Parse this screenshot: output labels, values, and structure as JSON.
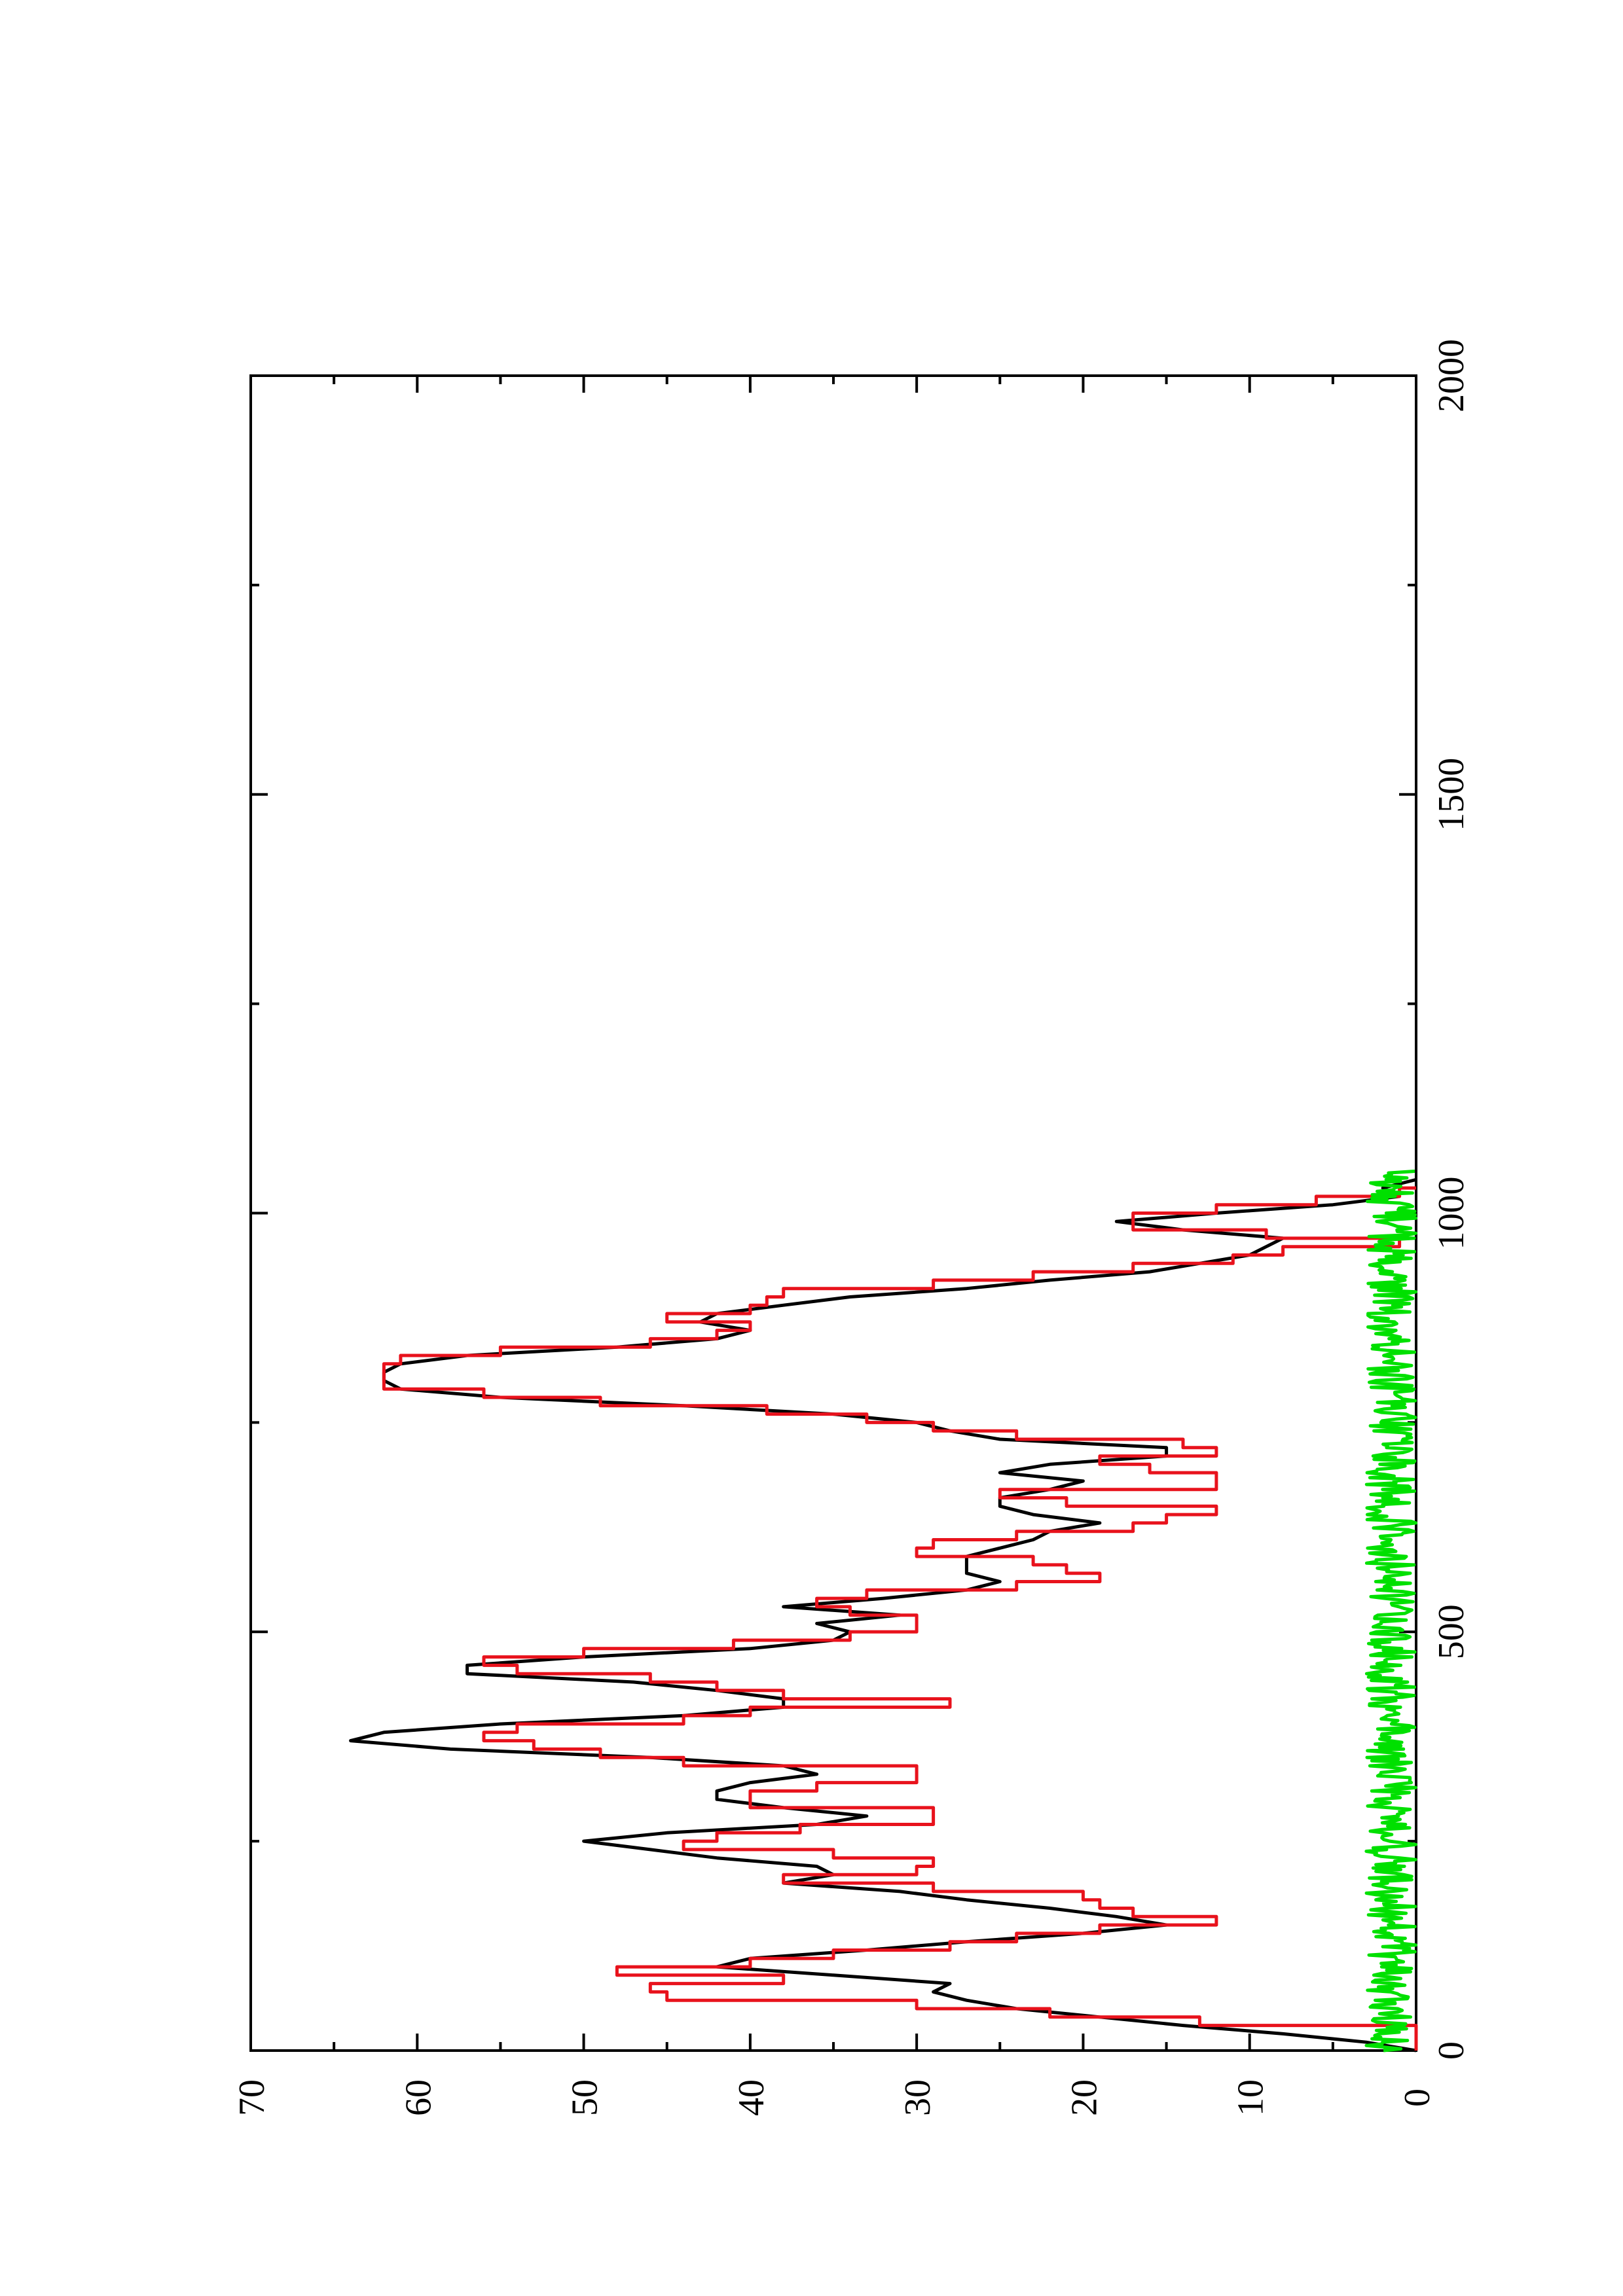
{
  "chart_data": {
    "type": "line",
    "orientation": "rotated-90-ccw",
    "title": "",
    "xlabel": "",
    "ylabel": "",
    "xlim": [
      0,
      2000
    ],
    "ylim": [
      0,
      70
    ],
    "x_ticks": [
      0,
      500,
      1000,
      1500,
      2000
    ],
    "y_ticks": [
      0,
      10,
      20,
      30,
      40,
      50,
      60,
      70
    ],
    "x_tick_labels": [
      "0",
      "500",
      "1000",
      "1500",
      "2000"
    ],
    "y_tick_labels": [
      "0",
      "10",
      "20",
      "30",
      "40",
      "50",
      "60",
      "70"
    ],
    "grid": false,
    "legend": "none",
    "series": [
      {
        "color": "#000000",
        "style": "smooth",
        "points": [
          [
            0,
            0
          ],
          [
            10,
            3
          ],
          [
            20,
            8
          ],
          [
            30,
            14
          ],
          [
            40,
            19
          ],
          [
            50,
            24
          ],
          [
            60,
            27
          ],
          [
            70,
            29
          ],
          [
            80,
            28
          ],
          [
            90,
            35
          ],
          [
            100,
            42
          ],
          [
            110,
            40
          ],
          [
            120,
            33
          ],
          [
            130,
            27
          ],
          [
            140,
            20
          ],
          [
            150,
            15
          ],
          [
            160,
            18
          ],
          [
            170,
            22
          ],
          [
            180,
            27
          ],
          [
            190,
            31
          ],
          [
            200,
            38
          ],
          [
            210,
            35
          ],
          [
            220,
            36
          ],
          [
            230,
            42
          ],
          [
            240,
            46
          ],
          [
            250,
            50
          ],
          [
            260,
            45
          ],
          [
            270,
            36
          ],
          [
            280,
            33
          ],
          [
            290,
            38
          ],
          [
            300,
            42
          ],
          [
            310,
            42
          ],
          [
            320,
            40
          ],
          [
            330,
            36
          ],
          [
            340,
            38
          ],
          [
            350,
            46
          ],
          [
            360,
            58
          ],
          [
            370,
            64
          ],
          [
            380,
            62
          ],
          [
            390,
            55
          ],
          [
            400,
            44
          ],
          [
            410,
            38
          ],
          [
            420,
            38
          ],
          [
            430,
            42
          ],
          [
            440,
            47
          ],
          [
            450,
            57
          ],
          [
            460,
            57
          ],
          [
            470,
            50
          ],
          [
            480,
            40
          ],
          [
            490,
            35
          ],
          [
            500,
            34
          ],
          [
            510,
            36
          ],
          [
            520,
            31
          ],
          [
            530,
            38
          ],
          [
            540,
            32
          ],
          [
            550,
            27
          ],
          [
            560,
            25
          ],
          [
            570,
            27
          ],
          [
            580,
            27
          ],
          [
            590,
            27
          ],
          [
            600,
            25
          ],
          [
            610,
            23
          ],
          [
            620,
            22
          ],
          [
            630,
            19
          ],
          [
            640,
            23
          ],
          [
            650,
            25
          ],
          [
            660,
            25
          ],
          [
            670,
            22
          ],
          [
            680,
            20
          ],
          [
            690,
            25
          ],
          [
            700,
            22
          ],
          [
            710,
            15
          ],
          [
            720,
            15
          ],
          [
            730,
            25
          ],
          [
            740,
            28
          ],
          [
            750,
            30
          ],
          [
            760,
            35
          ],
          [
            770,
            44
          ],
          [
            780,
            55
          ],
          [
            790,
            61
          ],
          [
            800,
            62
          ],
          [
            810,
            62
          ],
          [
            820,
            61
          ],
          [
            830,
            57
          ],
          [
            840,
            48
          ],
          [
            850,
            42
          ],
          [
            860,
            40
          ],
          [
            870,
            43
          ],
          [
            880,
            42
          ],
          [
            890,
            38
          ],
          [
            900,
            34
          ],
          [
            910,
            27
          ],
          [
            920,
            22
          ],
          [
            930,
            16
          ],
          [
            940,
            13
          ],
          [
            950,
            10
          ],
          [
            960,
            9
          ],
          [
            970,
            8
          ],
          [
            980,
            14
          ],
          [
            990,
            18
          ],
          [
            1000,
            12
          ],
          [
            1010,
            5
          ],
          [
            1020,
            1
          ],
          [
            1030,
            2
          ],
          [
            1040,
            0
          ]
        ]
      },
      {
        "color": "#e8121c",
        "style": "step",
        "points": [
          [
            0,
            0
          ],
          [
            30,
            13
          ],
          [
            40,
            22
          ],
          [
            50,
            30
          ],
          [
            60,
            45
          ],
          [
            70,
            46
          ],
          [
            80,
            38
          ],
          [
            90,
            48
          ],
          [
            100,
            40
          ],
          [
            110,
            35
          ],
          [
            120,
            28
          ],
          [
            130,
            24
          ],
          [
            140,
            19
          ],
          [
            150,
            12
          ],
          [
            160,
            17
          ],
          [
            170,
            19
          ],
          [
            180,
            20
          ],
          [
            190,
            29
          ],
          [
            200,
            38
          ],
          [
            210,
            30
          ],
          [
            220,
            29
          ],
          [
            230,
            35
          ],
          [
            240,
            44
          ],
          [
            250,
            42
          ],
          [
            260,
            37
          ],
          [
            270,
            29
          ],
          [
            280,
            29
          ],
          [
            290,
            40
          ],
          [
            300,
            40
          ],
          [
            310,
            36
          ],
          [
            320,
            30
          ],
          [
            330,
            30
          ],
          [
            340,
            44
          ],
          [
            350,
            49
          ],
          [
            360,
            53
          ],
          [
            370,
            56
          ],
          [
            380,
            54
          ],
          [
            390,
            44
          ],
          [
            400,
            40
          ],
          [
            410,
            28
          ],
          [
            420,
            38
          ],
          [
            430,
            42
          ],
          [
            440,
            46
          ],
          [
            450,
            54
          ],
          [
            460,
            56
          ],
          [
            470,
            50
          ],
          [
            480,
            41
          ],
          [
            490,
            34
          ],
          [
            500,
            30
          ],
          [
            510,
            30
          ],
          [
            520,
            34
          ],
          [
            530,
            36
          ],
          [
            540,
            33
          ],
          [
            550,
            24
          ],
          [
            560,
            19
          ],
          [
            570,
            21
          ],
          [
            580,
            23
          ],
          [
            590,
            30
          ],
          [
            600,
            29
          ],
          [
            610,
            24
          ],
          [
            620,
            17
          ],
          [
            630,
            15
          ],
          [
            640,
            12
          ],
          [
            650,
            21
          ],
          [
            660,
            25
          ],
          [
            670,
            12
          ],
          [
            680,
            12
          ],
          [
            690,
            16
          ],
          [
            700,
            19
          ],
          [
            710,
            12
          ],
          [
            720,
            14
          ],
          [
            730,
            24
          ],
          [
            740,
            29
          ],
          [
            750,
            33
          ],
          [
            760,
            39
          ],
          [
            770,
            49
          ],
          [
            780,
            56
          ],
          [
            790,
            62
          ],
          [
            800,
            62
          ],
          [
            810,
            62
          ],
          [
            820,
            61
          ],
          [
            830,
            55
          ],
          [
            840,
            46
          ],
          [
            850,
            42
          ],
          [
            860,
            40
          ],
          [
            870,
            45
          ],
          [
            880,
            40
          ],
          [
            890,
            39
          ],
          [
            900,
            38
          ],
          [
            910,
            29
          ],
          [
            920,
            23
          ],
          [
            930,
            17
          ],
          [
            940,
            11
          ],
          [
            950,
            8
          ],
          [
            960,
            1
          ],
          [
            970,
            9
          ],
          [
            980,
            17
          ],
          [
            990,
            17
          ],
          [
            1000,
            12
          ],
          [
            1010,
            6
          ],
          [
            1020,
            1
          ],
          [
            1030,
            0
          ]
        ]
      },
      {
        "color": "#00e000",
        "style": "noise",
        "x_range": [
          0,
          1050
        ],
        "level": 1.5,
        "amplitude": 1.5
      }
    ]
  }
}
